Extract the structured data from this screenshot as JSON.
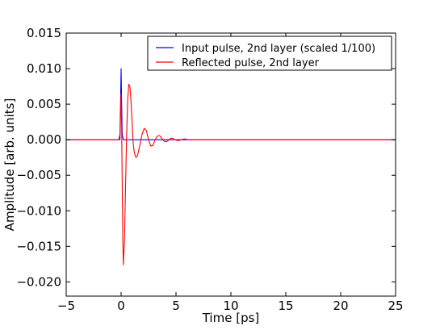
{
  "chart_data": {
    "type": "line",
    "xlabel": "Time [ps]",
    "ylabel": "Amplitude [arb. units]",
    "xlim": [
      -5,
      25
    ],
    "ylim": [
      -0.022,
      0.015
    ],
    "xticks": [
      -5,
      0,
      5,
      10,
      15,
      20,
      25
    ],
    "xtick_labels": [
      "−5",
      "0",
      "5",
      "10",
      "15",
      "20",
      "25"
    ],
    "yticks": [
      -0.02,
      -0.015,
      -0.01,
      -0.005,
      0.0,
      0.005,
      0.01,
      0.015
    ],
    "ytick_labels": [
      "−0.020",
      "−0.015",
      "−0.010",
      "−0.005",
      "0.000",
      "0.005",
      "0.010",
      "0.015"
    ],
    "grid": false,
    "legend_position": "top-right",
    "series": [
      {
        "name": "Input pulse, 2nd layer (scaled 1/100)",
        "color": "#0000ff",
        "x": [
          -5,
          -0.2,
          -0.1,
          -0.05,
          0.0,
          0.05,
          0.1,
          0.2,
          25
        ],
        "y": [
          0,
          0,
          0.0008,
          0.005,
          0.01,
          0.005,
          0.0008,
          0,
          0
        ]
      },
      {
        "name": "Reflected pulse, 2nd layer",
        "color": "#ff0000",
        "x": [
          -5,
          -0.1,
          0.0,
          0.05,
          0.1,
          0.15,
          0.2,
          0.3,
          0.4,
          0.5,
          0.6,
          0.7,
          0.8,
          0.9,
          1.0,
          1.1,
          1.2,
          1.35,
          1.5,
          1.7,
          1.9,
          2.1,
          2.3,
          2.5,
          2.7,
          2.9,
          3.1,
          3.3,
          3.5,
          3.7,
          3.9,
          4.1,
          4.3,
          4.5,
          4.7,
          4.9,
          5.1,
          5.3,
          5.5,
          5.7,
          5.9,
          6.1,
          6.4,
          7.0,
          25
        ],
        "y": [
          0,
          0,
          0.0065,
          0.002,
          -0.006,
          -0.013,
          -0.0176,
          -0.0145,
          -0.007,
          0.0005,
          0.0055,
          0.0078,
          0.0075,
          0.0055,
          0.0025,
          -0.0005,
          -0.0018,
          -0.0025,
          -0.0022,
          -0.0008,
          0.0007,
          0.0016,
          0.0013,
          0.0,
          -0.0009,
          -0.0008,
          0.0,
          0.0005,
          0.0006,
          0.0002,
          -0.0002,
          -0.0003,
          -0.0001,
          0.0002,
          0.0002,
          0.0,
          -0.0001,
          -0.0001,
          0.0,
          0.0001,
          0.0001,
          0.0,
          0.0,
          0,
          0
        ]
      }
    ]
  }
}
